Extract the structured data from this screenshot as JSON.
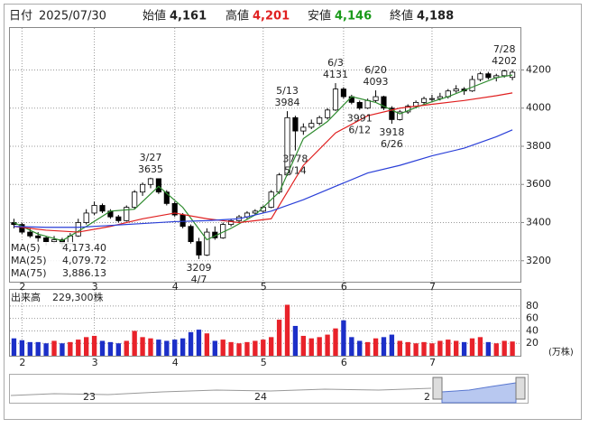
{
  "header": {
    "date_label": "日付",
    "date": "2025/07/30",
    "open_label": "始値",
    "open": "4,161",
    "high_label": "高値",
    "high": "4,201",
    "low_label": "安値",
    "low": "4,146",
    "close_label": "終値",
    "close": "4,188"
  },
  "chart_data": {
    "type": "candlestick",
    "ylim": [
      3090,
      4420
    ],
    "yticks": [
      3200,
      3400,
      3600,
      3800,
      4000,
      4200
    ],
    "grid": true,
    "xlim": [
      -0.5,
      63
    ],
    "month_ticks": [
      {
        "value": 1,
        "label": "2"
      },
      {
        "value": 10,
        "label": "3"
      },
      {
        "value": 20,
        "label": "4"
      },
      {
        "value": 31,
        "label": "5"
      },
      {
        "value": 41,
        "label": "6"
      },
      {
        "value": 52,
        "label": "7"
      }
    ],
    "up_fill": "#ffffff",
    "down_fill": "#000000",
    "candles": [
      [
        3400,
        3420,
        3370,
        3390
      ],
      [
        3390,
        3400,
        3340,
        3350
      ],
      [
        3350,
        3370,
        3320,
        3330
      ],
      [
        3330,
        3350,
        3300,
        3320
      ],
      [
        3320,
        3330,
        3280,
        3300
      ],
      [
        3300,
        3330,
        3290,
        3310
      ],
      [
        3310,
        3320,
        3270,
        3290
      ],
      [
        3290,
        3345,
        3285,
        3330
      ],
      [
        3330,
        3420,
        3325,
        3400
      ],
      [
        3400,
        3470,
        3390,
        3450
      ],
      [
        3450,
        3510,
        3440,
        3490
      ],
      [
        3490,
        3500,
        3450,
        3460
      ],
      [
        3460,
        3470,
        3420,
        3430
      ],
      [
        3430,
        3440,
        3400,
        3410
      ],
      [
        3410,
        3490,
        3405,
        3480
      ],
      [
        3480,
        3570,
        3470,
        3560
      ],
      [
        3560,
        3610,
        3540,
        3600
      ],
      [
        3600,
        3635,
        3580,
        3630
      ],
      [
        3630,
        3630,
        3550,
        3560
      ],
      [
        3560,
        3570,
        3490,
        3500
      ],
      [
        3500,
        3510,
        3430,
        3440
      ],
      [
        3440,
        3450,
        3370,
        3380
      ],
      [
        3380,
        3390,
        3290,
        3300
      ],
      [
        3300,
        3320,
        3209,
        3230
      ],
      [
        3230,
        3370,
        3225,
        3350
      ],
      [
        3350,
        3380,
        3310,
        3320
      ],
      [
        3320,
        3400,
        3315,
        3390
      ],
      [
        3390,
        3420,
        3380,
        3410
      ],
      [
        3410,
        3440,
        3400,
        3430
      ],
      [
        3430,
        3460,
        3420,
        3450
      ],
      [
        3450,
        3470,
        3440,
        3460
      ],
      [
        3460,
        3490,
        3450,
        3480
      ],
      [
        3480,
        3570,
        3475,
        3560
      ],
      [
        3560,
        3660,
        3550,
        3650
      ],
      [
        3650,
        3984,
        3645,
        3950
      ],
      [
        3950,
        3960,
        3778,
        3880
      ],
      [
        3880,
        3920,
        3860,
        3900
      ],
      [
        3900,
        3940,
        3890,
        3920
      ],
      [
        3920,
        3960,
        3910,
        3950
      ],
      [
        3950,
        4000,
        3940,
        3990
      ],
      [
        3990,
        4131,
        3985,
        4100
      ],
      [
        4100,
        4110,
        4050,
        4060
      ],
      [
        4060,
        4070,
        4020,
        4030
      ],
      [
        4030,
        4040,
        3991,
        4000
      ],
      [
        4000,
        4050,
        3995,
        4040
      ],
      [
        4040,
        4093,
        4030,
        4060
      ],
      [
        4060,
        4065,
        3990,
        4000
      ],
      [
        4000,
        4010,
        3918,
        3940
      ],
      [
        3940,
        3990,
        3935,
        3980
      ],
      [
        3980,
        4020,
        3970,
        4010
      ],
      [
        4010,
        4040,
        4000,
        4030
      ],
      [
        4030,
        4060,
        4020,
        4050
      ],
      [
        4050,
        4070,
        4030,
        4050
      ],
      [
        4050,
        4080,
        4040,
        4060
      ],
      [
        4060,
        4100,
        4050,
        4090
      ],
      [
        4090,
        4120,
        4080,
        4100
      ],
      [
        4100,
        4110,
        4070,
        4090
      ],
      [
        4090,
        4170,
        4085,
        4150
      ],
      [
        4150,
        4190,
        4140,
        4180
      ],
      [
        4180,
        4190,
        4150,
        4160
      ],
      [
        4160,
        4180,
        4140,
        4170
      ],
      [
        4170,
        4202,
        4160,
        4195
      ],
      [
        4161,
        4201,
        4146,
        4188
      ]
    ],
    "series": [
      {
        "name": "MA(5)",
        "legend_value": "4,173.40",
        "color": "#2e8b2e",
        "x": [
          0,
          3,
          6,
          9,
          12,
          15,
          18,
          21,
          24,
          27,
          30,
          33,
          36,
          39,
          42,
          45,
          48,
          51,
          54,
          57,
          60,
          62
        ],
        "values": [
          3400,
          3340,
          3305,
          3380,
          3460,
          3470,
          3590,
          3480,
          3310,
          3370,
          3440,
          3560,
          3840,
          3930,
          4060,
          4030,
          3970,
          4020,
          4060,
          4110,
          4160,
          4173.4
        ]
      },
      {
        "name": "MA(25)",
        "legend_value": "4,079.72",
        "color": "#e02020",
        "x": [
          0,
          4,
          8,
          12,
          16,
          20,
          24,
          28,
          32,
          36,
          40,
          44,
          48,
          52,
          56,
          60,
          62
        ],
        "values": [
          3380,
          3360,
          3350,
          3380,
          3420,
          3450,
          3420,
          3400,
          3420,
          3700,
          3870,
          3960,
          4000,
          4020,
          4040,
          4065,
          4079.72
        ]
      },
      {
        "name": "MA(75)",
        "legend_value": "3,886.13",
        "color": "#2a3fd8",
        "x": [
          0,
          4,
          8,
          12,
          16,
          20,
          24,
          28,
          32,
          36,
          40,
          44,
          48,
          52,
          56,
          60,
          62
        ],
        "values": [
          3380,
          3375,
          3375,
          3385,
          3395,
          3405,
          3410,
          3420,
          3460,
          3520,
          3590,
          3660,
          3700,
          3750,
          3790,
          3850,
          3886.13
        ]
      }
    ],
    "annotations": [
      {
        "date": "3/27",
        "value": 3635,
        "index": 17,
        "position": "above"
      },
      {
        "date": "4/7",
        "value": 3209,
        "index": 23,
        "position": "below"
      },
      {
        "date": "5/13",
        "value": 3984,
        "index": 34,
        "position": "above"
      },
      {
        "date": "5/14",
        "value": 3778,
        "index": 35,
        "position": "below"
      },
      {
        "date": "6/3",
        "value": 4131,
        "index": 40,
        "position": "above"
      },
      {
        "date": "6/12",
        "value": 3991,
        "index": 43,
        "position": "below"
      },
      {
        "date": "6/20",
        "value": 4093,
        "index": 45,
        "position": "above"
      },
      {
        "date": "6/26",
        "value": 3918,
        "index": 47,
        "position": "below"
      },
      {
        "date": "7/28",
        "value": 4202,
        "index": 61,
        "position": "above"
      }
    ],
    "volume": {
      "label": "出来高",
      "current": "229,300株",
      "unit": "(万株)",
      "ylim": [
        0,
        106
      ],
      "yticks": [
        20,
        40,
        60,
        80
      ],
      "up_color": "#e8222a",
      "down_color": "#1c2fc8",
      "values": [
        28,
        25,
        22,
        22,
        20,
        24,
        20,
        22,
        26,
        30,
        32,
        24,
        22,
        20,
        24,
        40,
        30,
        28,
        26,
        24,
        26,
        28,
        38,
        42,
        36,
        24,
        26,
        22,
        20,
        22,
        24,
        26,
        30,
        58,
        82,
        48,
        32,
        28,
        30,
        34,
        44,
        57,
        30,
        24,
        22,
        28,
        30,
        34,
        24,
        22,
        20,
        22,
        20,
        24,
        26,
        24,
        22,
        28,
        30,
        22,
        20,
        24,
        22.93
      ]
    }
  },
  "navigator": {
    "labels": [
      "23",
      "24",
      "2"
    ]
  }
}
